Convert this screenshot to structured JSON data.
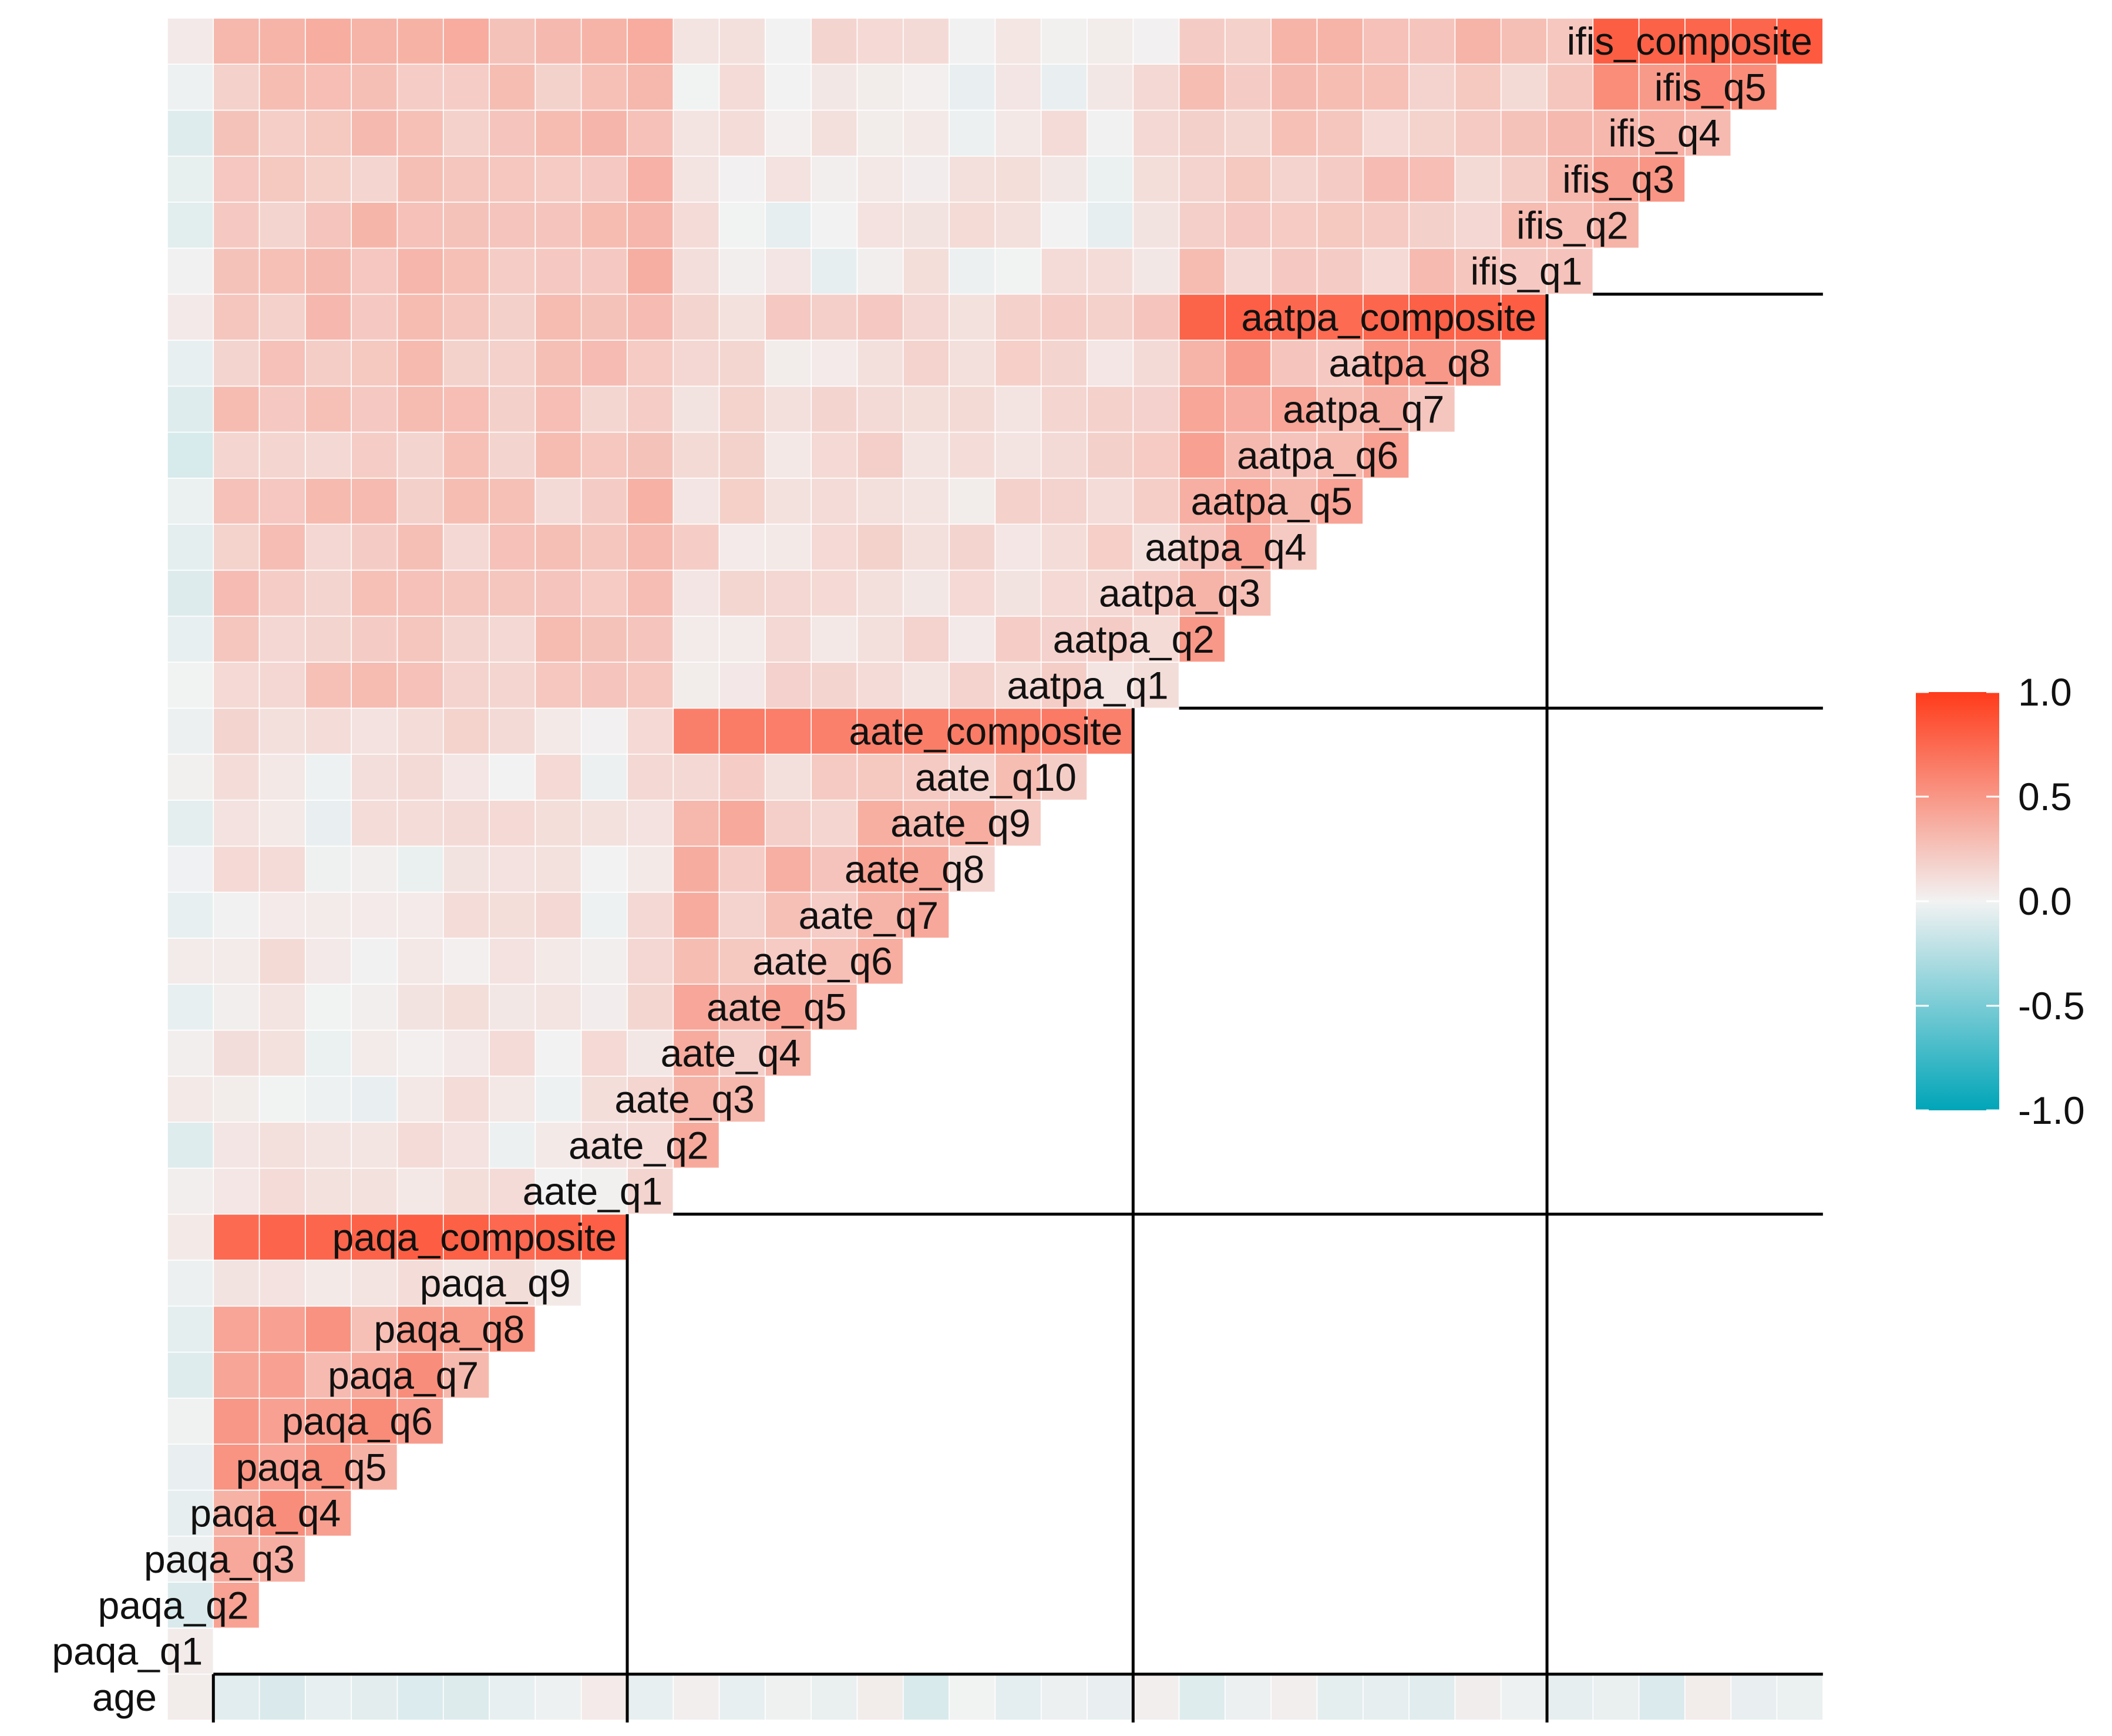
{
  "chart_data": {
    "type": "heatmap",
    "title": "",
    "xlabel": "",
    "ylabel": "",
    "variables": [
      "age",
      "paqa_q1",
      "paqa_q2",
      "paqa_q3",
      "paqa_q4",
      "paqa_q5",
      "paqa_q6",
      "paqa_q7",
      "paqa_q8",
      "paqa_q9",
      "paqa_composite",
      "aate_q1",
      "aate_q2",
      "aate_q3",
      "aate_q4",
      "aate_q5",
      "aate_q6",
      "aate_q7",
      "aate_q8",
      "aate_q9",
      "aate_q10",
      "aate_composite",
      "aatpa_q1",
      "aatpa_q2",
      "aatpa_q3",
      "aatpa_q4",
      "aatpa_q5",
      "aatpa_q6",
      "aatpa_q7",
      "aatpa_q8",
      "aatpa_composite",
      "ifis_q1",
      "ifis_q2",
      "ifis_q3",
      "ifis_q4",
      "ifis_q5",
      "ifis_composite"
    ],
    "groups": [
      {
        "name": "paqa",
        "first": 1,
        "last": 10
      },
      {
        "name": "aate",
        "first": 11,
        "last": 21
      },
      {
        "name": "aatpa",
        "first": 22,
        "last": 30
      },
      {
        "name": "ifis",
        "first": 31,
        "last": 36
      }
    ],
    "within_block": {
      "paqa": {
        "item": 0.42,
        "composite": 0.78,
        "item_to_q9": 0.08
      },
      "aate": {
        "item": 0.3,
        "composite": 0.62,
        "item_to_q10": 0.2
      },
      "aatpa": {
        "item": 0.35,
        "composite": 0.78
      },
      "ifis": {
        "item": 0.45,
        "composite": 0.8
      }
    },
    "between_blocks": {
      "paqa-aate": 0.05,
      "paqa-aatpa": 0.22,
      "paqa-ifis": 0.25,
      "aate-aatpa": 0.12,
      "aate-ifis": 0.04,
      "aatpa-ifis": 0.22
    },
    "age_correlation": -0.03,
    "color_scale": {
      "min": -1.0,
      "max": 1.0,
      "low_color": "#00A5B8",
      "mid_color": "#F2F2F2",
      "high_color": "#FF3B1A",
      "ticks": [
        "1.0",
        "0.5",
        "0.0",
        "-0.5",
        "-1.0"
      ]
    },
    "cell_border_color": "#FFFFFF",
    "block_line_color": "#000000"
  }
}
